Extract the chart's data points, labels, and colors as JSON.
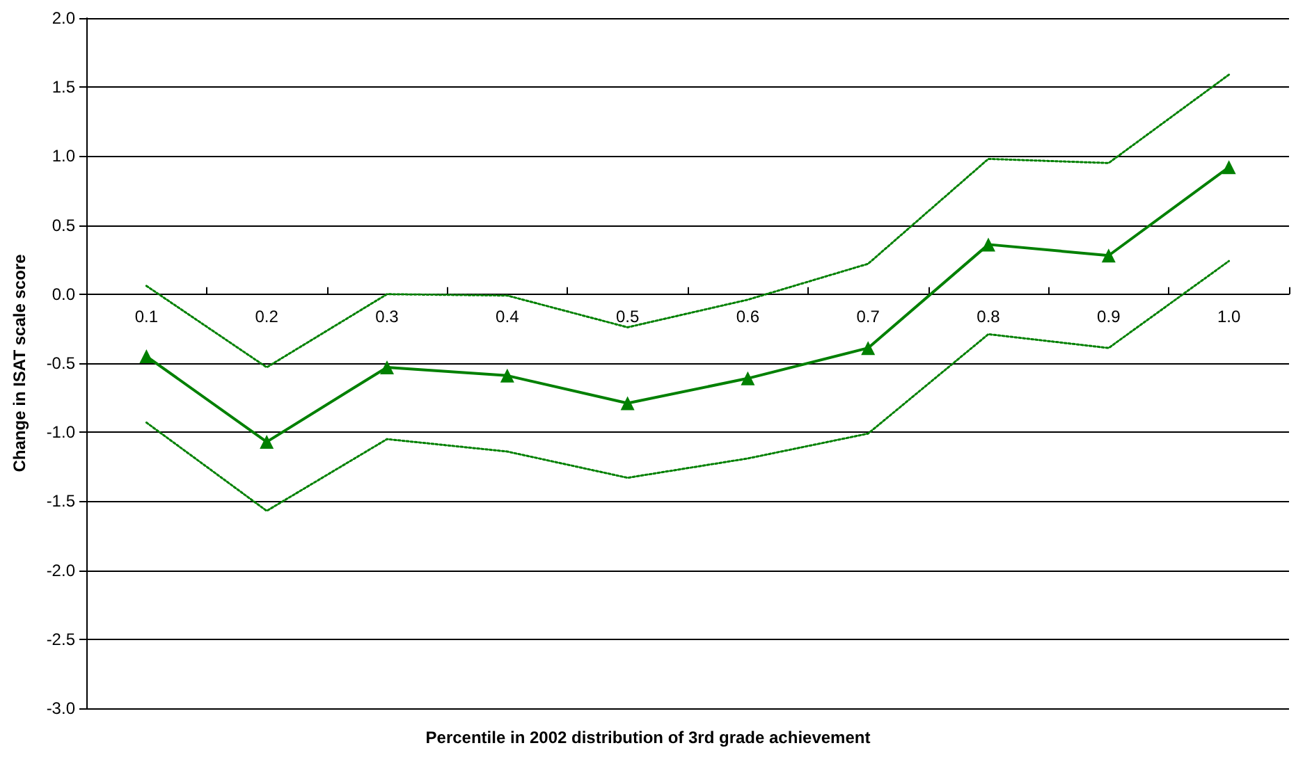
{
  "chart_data": {
    "type": "line",
    "xlabel": "Percentile in 2002 distribution of 3rd grade achievement",
    "ylabel": "Change in ISAT scale score",
    "categories": [
      "0.1",
      "0.2",
      "0.3",
      "0.4",
      "0.5",
      "0.6",
      "0.7",
      "0.8",
      "0.9",
      "1.0"
    ],
    "series": [
      {
        "color": "#008000",
        "marker": "triangle",
        "line_style": "solid",
        "values": [
          -0.45,
          -1.07,
          -0.53,
          -0.59,
          -0.79,
          -0.61,
          -0.39,
          0.36,
          0.28,
          0.92
        ]
      },
      {
        "color": "#008000",
        "marker": "none",
        "line_style": "dotted",
        "values": [
          0.06,
          -0.53,
          0.0,
          -0.01,
          -0.24,
          -0.04,
          0.22,
          0.98,
          0.95,
          1.59
        ]
      },
      {
        "color": "#008000",
        "marker": "none",
        "line_style": "dotted",
        "values": [
          -0.93,
          -1.57,
          -1.05,
          -1.14,
          -1.33,
          -1.19,
          -1.01,
          -0.29,
          -0.39,
          0.24
        ]
      }
    ],
    "ylim": [
      -3,
      2
    ],
    "yticks": [
      {
        "value": -3,
        "label": "-3.0"
      },
      {
        "value": -2.5,
        "label": "-2.5"
      },
      {
        "value": -2,
        "label": "-2.0"
      },
      {
        "value": -1.5,
        "label": "-1.5"
      },
      {
        "value": -1,
        "label": "-1.0"
      },
      {
        "value": -0.5,
        "label": "-0.5"
      },
      {
        "value": 0,
        "label": "0.0"
      },
      {
        "value": 0.5,
        "label": "0.5"
      },
      {
        "value": 1,
        "label": "1.0"
      },
      {
        "value": 1.5,
        "label": "1.5"
      },
      {
        "value": 2,
        "label": "2.0"
      }
    ],
    "grid": "y"
  }
}
